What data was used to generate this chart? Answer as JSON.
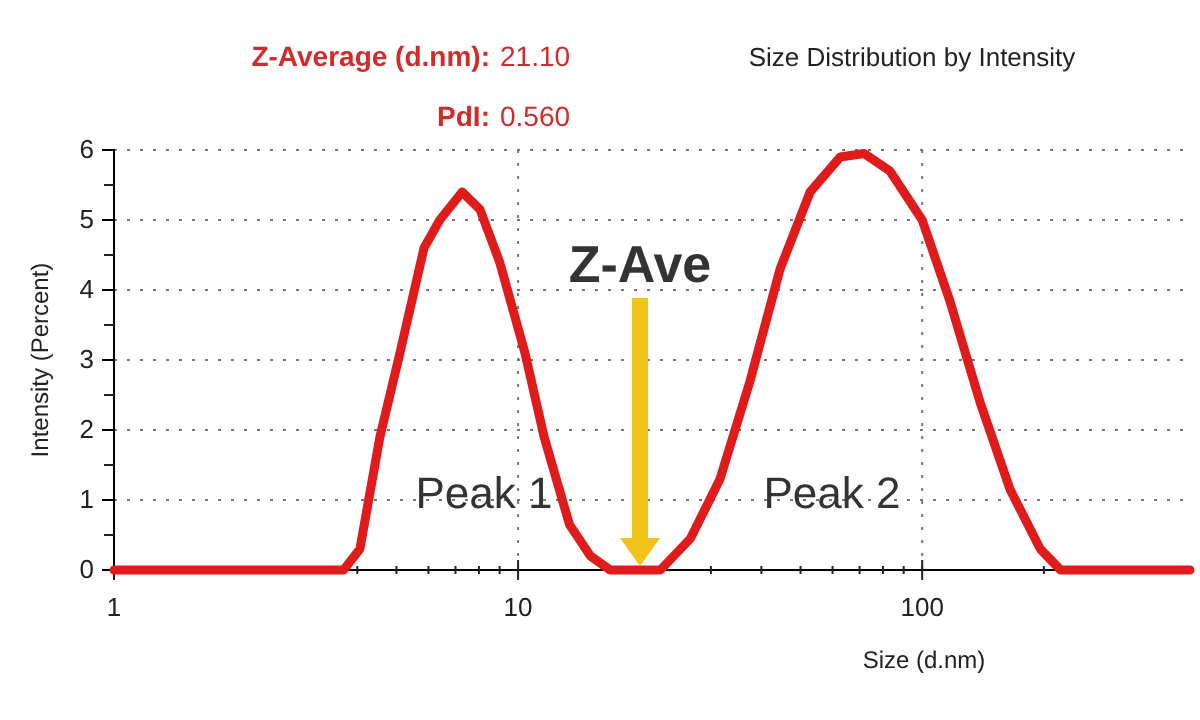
{
  "chart_data": {
    "type": "line",
    "title": "Size Distribution by Intensity",
    "xlabel": "Size (d.nm)",
    "ylabel": "Intensity (Percent)",
    "log": "x",
    "xlim": [
      1,
      460
    ],
    "xticks": [
      1,
      10,
      100
    ],
    "ylim": [
      0,
      6
    ],
    "yticks": [
      0,
      1,
      2,
      3,
      4,
      5,
      6
    ],
    "grid": true,
    "line_style": "solid",
    "marker": "none",
    "annotations": [
      "Z-Average (d.nm):",
      "21.10",
      "PdI:",
      "0.560",
      "Peak 1",
      "Peak 2",
      "Z-Ave"
    ],
    "series": [
      {
        "color": "#e01b1b",
        "x": [
          1,
          3.7,
          4.06,
          4.55,
          5.1,
          5.85,
          6.4,
          7.27,
          8.05,
          9.0,
          10.4,
          11.6,
          13.4,
          15.1,
          16.9,
          22.5,
          26.7,
          31.6,
          37.5,
          44.5,
          52.8,
          62.7,
          71.8,
          83.2,
          100,
          117,
          139,
          165,
          196,
          220,
          460
        ],
        "values": [
          0,
          0,
          0.3,
          1.9,
          3.1,
          4.6,
          5.0,
          5.4,
          5.15,
          4.4,
          3.1,
          1.9,
          0.65,
          0.2,
          0,
          0,
          0.45,
          1.3,
          2.7,
          4.3,
          5.4,
          5.9,
          5.95,
          5.7,
          5.0,
          3.85,
          2.4,
          1.15,
          0.3,
          0,
          0
        ]
      }
    ]
  }
}
